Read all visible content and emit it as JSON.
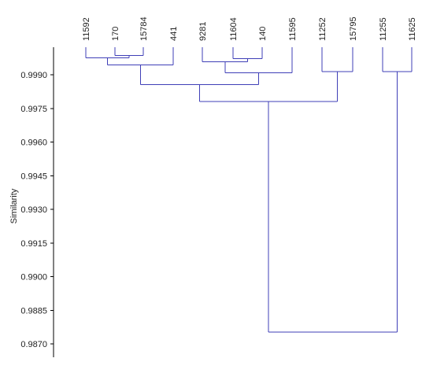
{
  "chart_data": {
    "type": "dendrogram",
    "ylabel": "Similarity",
    "y_axis": {
      "ticks": [
        0.999,
        0.9975,
        0.996,
        0.9945,
        0.993,
        0.9915,
        0.99,
        0.9885,
        0.987
      ],
      "tick_labels": [
        "0.9990",
        "0.9975",
        "0.9960",
        "0.9945",
        "0.9930",
        "0.9915",
        "0.9900",
        "0.9885",
        "0.9870"
      ]
    },
    "leaves": [
      "11592",
      "170",
      "15784",
      "441",
      "9281",
      "11604",
      "140",
      "11595",
      "11252",
      "15795",
      "11255",
      "11625"
    ],
    "merges": [
      {
        "children": [
          "170",
          "15784"
        ],
        "similarity": 0.99986
      },
      {
        "children": [
          "11592",
          "170+15784"
        ],
        "similarity": 0.99976
      },
      {
        "children": [
          "11592+170+15784",
          "441"
        ],
        "similarity": 0.99943
      },
      {
        "children": [
          "11604",
          "140"
        ],
        "similarity": 1.0
      },
      {
        "children": [
          "9281",
          "11604+140"
        ],
        "similarity": 0.99958
      },
      {
        "children": [
          "9281+11604+140",
          "11595"
        ],
        "similarity": 0.99908
      },
      {
        "children": [
          "11592+170+15784+441",
          "9281+11604+140+11595"
        ],
        "similarity": 0.99857
      },
      {
        "children": [
          "11252",
          "15795"
        ],
        "similarity": 0.99914
      },
      {
        "children": [
          "left-group",
          "11252+15795"
        ],
        "similarity": 0.9978
      },
      {
        "children": [
          "11255",
          "11625"
        ],
        "similarity": 0.99914
      },
      {
        "children": [
          "all-left",
          "11255+11625"
        ],
        "similarity": 0.98753
      }
    ],
    "line_color": "#3f3fb7"
  }
}
